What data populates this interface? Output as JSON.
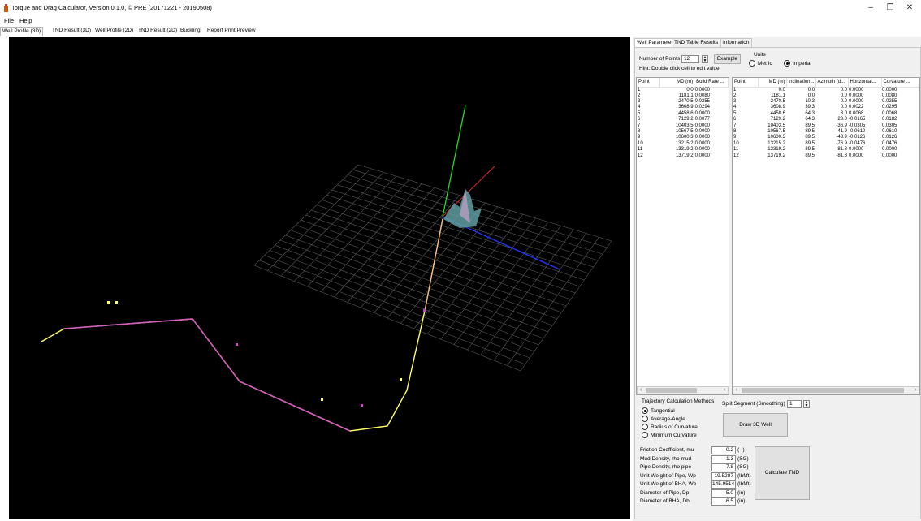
{
  "window": {
    "title": "Torque and Drag Calculator, Version 0.1.0, © PRE (20171221 - 20190508)",
    "minimize": "–",
    "maximize": "❐",
    "close": "✕"
  },
  "menu": [
    "File",
    "Help"
  ],
  "main_tabs": [
    "Well Profile (3D)",
    "TND Result (3D)",
    "Well Profile (2D)",
    "TND Result (2D)",
    "Buckling",
    "Report Print Preview"
  ],
  "right_tabs": [
    "Well Parameter",
    "TND Table Results",
    "Information"
  ],
  "params": {
    "num_points_label": "Number of Points",
    "num_points_value": "12",
    "example_label": "Example",
    "hint": "Hint: Double click cell to edit value",
    "units_label": "Units",
    "unit_metric": "Metric",
    "unit_imperial": "Imperial"
  },
  "grid_left": {
    "headers": [
      "Point",
      "MD (m)",
      "Build Rate ..."
    ],
    "rows": [
      [
        "1",
        "0.0",
        "0.0000"
      ],
      [
        "2",
        "1181.1",
        "0.0080"
      ],
      [
        "3",
        "2470.5",
        "0.0255"
      ],
      [
        "4",
        "3608.9",
        "0.0294"
      ],
      [
        "5",
        "4458.6",
        "0.0000"
      ],
      [
        "6",
        "7129.2",
        "0.0077"
      ],
      [
        "7",
        "10403.5",
        "0.0000"
      ],
      [
        "8",
        "10567.5",
        "0.0000"
      ],
      [
        "9",
        "10600.3",
        "0.0000"
      ],
      [
        "10",
        "13215.2",
        "0.0000"
      ],
      [
        "11",
        "13319.2",
        "0.0000"
      ],
      [
        "12",
        "13719.2",
        "0.0000"
      ]
    ]
  },
  "grid_right": {
    "headers": [
      "Point",
      "MD (m)",
      "Inclination...",
      "Azimuth (d...",
      "Horizontal...",
      "Curvature ..."
    ],
    "rows": [
      [
        "1",
        "0.0",
        "0.0",
        "0.0",
        "0.0000",
        "0.0000"
      ],
      [
        "2",
        "1181.1",
        "0.0",
        "0.0",
        "0.0000",
        "0.0080"
      ],
      [
        "3",
        "2470.5",
        "10.3",
        "0.0",
        "0.0000",
        "0.0255"
      ],
      [
        "4",
        "3608.9",
        "39.3",
        "0.0",
        "0.0022",
        "0.0295"
      ],
      [
        "5",
        "4458.6",
        "64.3",
        "3.0",
        "0.0068",
        "0.0068"
      ],
      [
        "6",
        "7129.2",
        "64.3",
        "23.0",
        "-0.0165",
        "0.0182"
      ],
      [
        "7",
        "10403.5",
        "89.5",
        "-36.9",
        "-0.0305",
        "0.0305"
      ],
      [
        "8",
        "10567.5",
        "89.5",
        "-41.9",
        "-0.0610",
        "0.0610"
      ],
      [
        "9",
        "10600.3",
        "89.5",
        "-43.9",
        "-0.0126",
        "0.0126"
      ],
      [
        "10",
        "13215.2",
        "89.5",
        "-76.9",
        "-0.0476",
        "0.0476"
      ],
      [
        "11",
        "13319.2",
        "89.5",
        "-81.8",
        "0.0000",
        "0.0000"
      ],
      [
        "12",
        "13719.2",
        "89.5",
        "-81.8",
        "0.0000",
        "0.0000"
      ]
    ]
  },
  "trajectory": {
    "label": "Trajectory Calculation Methods",
    "methods": [
      "Tangential",
      "Average-Angle",
      "Radius of Curvature",
      "Minimum Curvature"
    ],
    "selected": "Tangential",
    "split_label": "Split Segment (Smoothing)",
    "split_value": "1",
    "draw_button": "Draw 3D Well"
  },
  "inputs": [
    {
      "label": "Friction Coefficient, mu",
      "value": "0.2",
      "unit": "(--)"
    },
    {
      "label": "Mud Density, rho mud",
      "value": "1.3",
      "unit": "(SG)"
    },
    {
      "label": "Pipe Density, rho pipe",
      "value": "7.8",
      "unit": "(SG)"
    },
    {
      "label": "Unit Weight of Pipe, Wp",
      "value": "19.5287",
      "unit": "(lbf/ft)"
    },
    {
      "label": "Unit Weight of BHA, Wb",
      "value": "145.9514",
      "unit": "(lbf/ft)"
    },
    {
      "label": "Diameter of Pipe, Dp",
      "value": "5.0",
      "unit": "(in)"
    },
    {
      "label": "Diameter of BHA, Db",
      "value": "6.5",
      "unit": "(in)"
    }
  ],
  "calculate_button": "Calculate TND",
  "colors": {
    "viewport_bg": "#000000",
    "well_yellow": "#ffff66",
    "well_magenta": "#cc44cc",
    "axis_green": "#22dd22",
    "axis_red": "#dd2222",
    "axis_blue": "#2233ee",
    "grid_line": "#555555"
  }
}
